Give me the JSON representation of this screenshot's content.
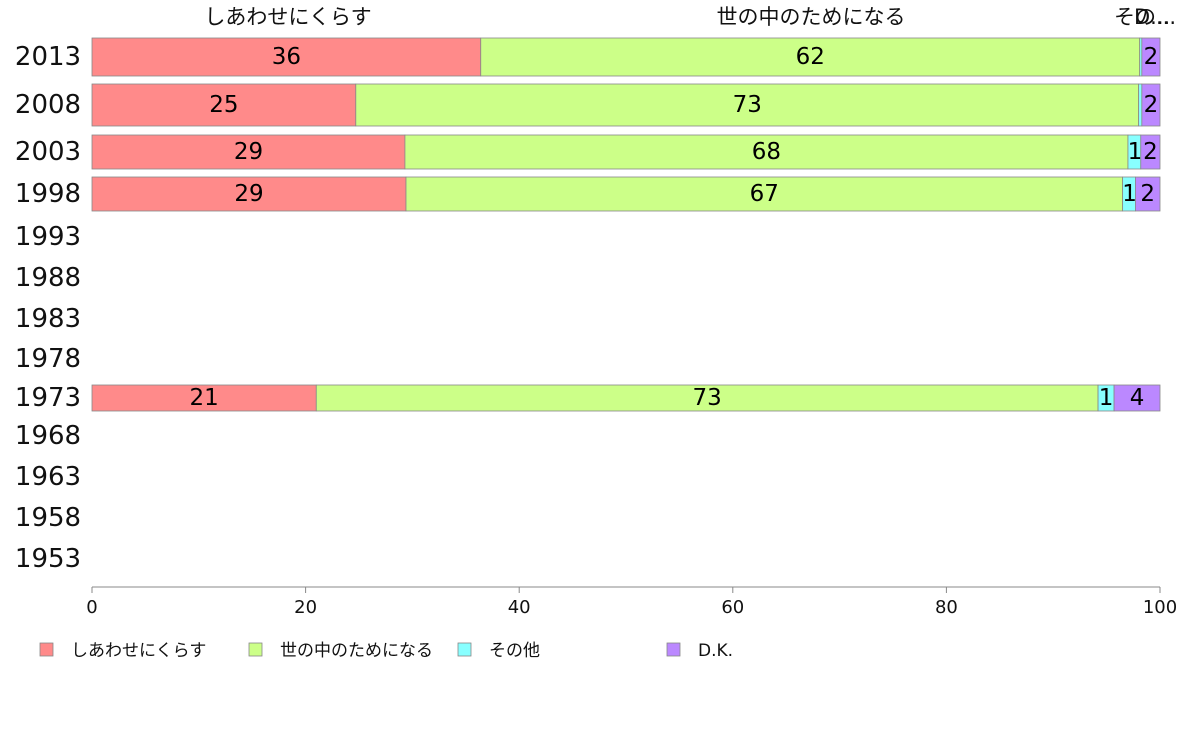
{
  "chart_data": {
    "type": "bar",
    "orientation": "horizontal",
    "stacked": true,
    "categories": [
      "2013",
      "2008",
      "2003",
      "1998",
      "1993",
      "1988",
      "1983",
      "1978",
      "1973",
      "1968",
      "1963",
      "1958",
      "1953"
    ],
    "series": [
      {
        "name": "しあわせにくらす",
        "color": "#ff8a8a",
        "values": [
          36.4,
          24.7,
          29.3,
          29.4,
          null,
          null,
          null,
          null,
          21.0,
          null,
          null,
          null,
          null
        ],
        "labels": [
          "36",
          "25",
          "29",
          "29",
          "",
          "",
          "",
          "",
          "21",
          "",
          "",
          "",
          ""
        ]
      },
      {
        "name": "世の中のためになる",
        "color": "#ccff88",
        "values": [
          61.7,
          73.3,
          67.7,
          67.1,
          null,
          null,
          null,
          null,
          73.2,
          null,
          null,
          null,
          null
        ],
        "labels": [
          "62",
          "73",
          "68",
          "67",
          "",
          "",
          "",
          "",
          "73",
          "",
          "",
          "",
          ""
        ]
      },
      {
        "name": "その他",
        "color": "#88ffff",
        "values": [
          0.2,
          0.3,
          1.2,
          1.2,
          null,
          null,
          null,
          null,
          1.5,
          null,
          null,
          null,
          null
        ],
        "labels": [
          "",
          "",
          "1",
          "1",
          "",
          "",
          "",
          "",
          "1",
          "",
          "",
          "",
          ""
        ]
      },
      {
        "name": "D.K.",
        "color": "#bb88ff",
        "values": [
          1.7,
          1.7,
          1.8,
          2.3,
          null,
          null,
          null,
          null,
          4.3,
          null,
          null,
          null,
          null
        ],
        "labels": [
          "2",
          "2",
          "2",
          "2",
          "",
          "",
          "",
          "",
          "4",
          "",
          "",
          "",
          ""
        ]
      }
    ],
    "column_headers": [
      "しあわせにくらす",
      "世の中のためになる",
      "その...",
      "D..."
    ],
    "xlim": [
      0,
      100
    ],
    "xticks": [
      0,
      20,
      40,
      60,
      80,
      100
    ],
    "grid": false,
    "legend_position": "bottom-left"
  }
}
